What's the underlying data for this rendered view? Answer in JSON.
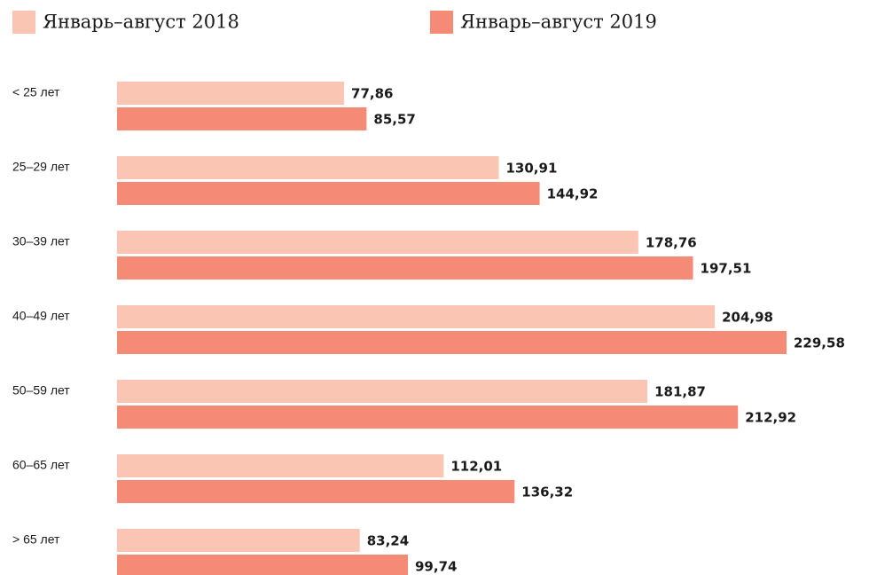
{
  "chart_data": {
    "type": "hbar",
    "categories": [
      "< 25 лет",
      "25–29 лет",
      "30–39 лет",
      "40–49 лет",
      "50–59 лет",
      "60–65 лет",
      "> 65 лет"
    ],
    "series": [
      {
        "name": "Январь–август 2018",
        "color": "#fbc5b3",
        "values": [
          77.86,
          130.91,
          178.76,
          204.98,
          181.87,
          112.01,
          83.24
        ],
        "value_labels": [
          "77,86",
          "130,91",
          "178,76",
          "204,98",
          "181,87",
          "112,01",
          "83,24"
        ]
      },
      {
        "name": "Январь–август 2019",
        "color": "#f58b77",
        "values": [
          85.57,
          144.92,
          197.51,
          229.58,
          212.92,
          136.32,
          99.74
        ],
        "value_labels": [
          "85,57",
          "144,92",
          "197,51",
          "229,58",
          "212,92",
          "136,32",
          "99,74"
        ]
      }
    ]
  }
}
